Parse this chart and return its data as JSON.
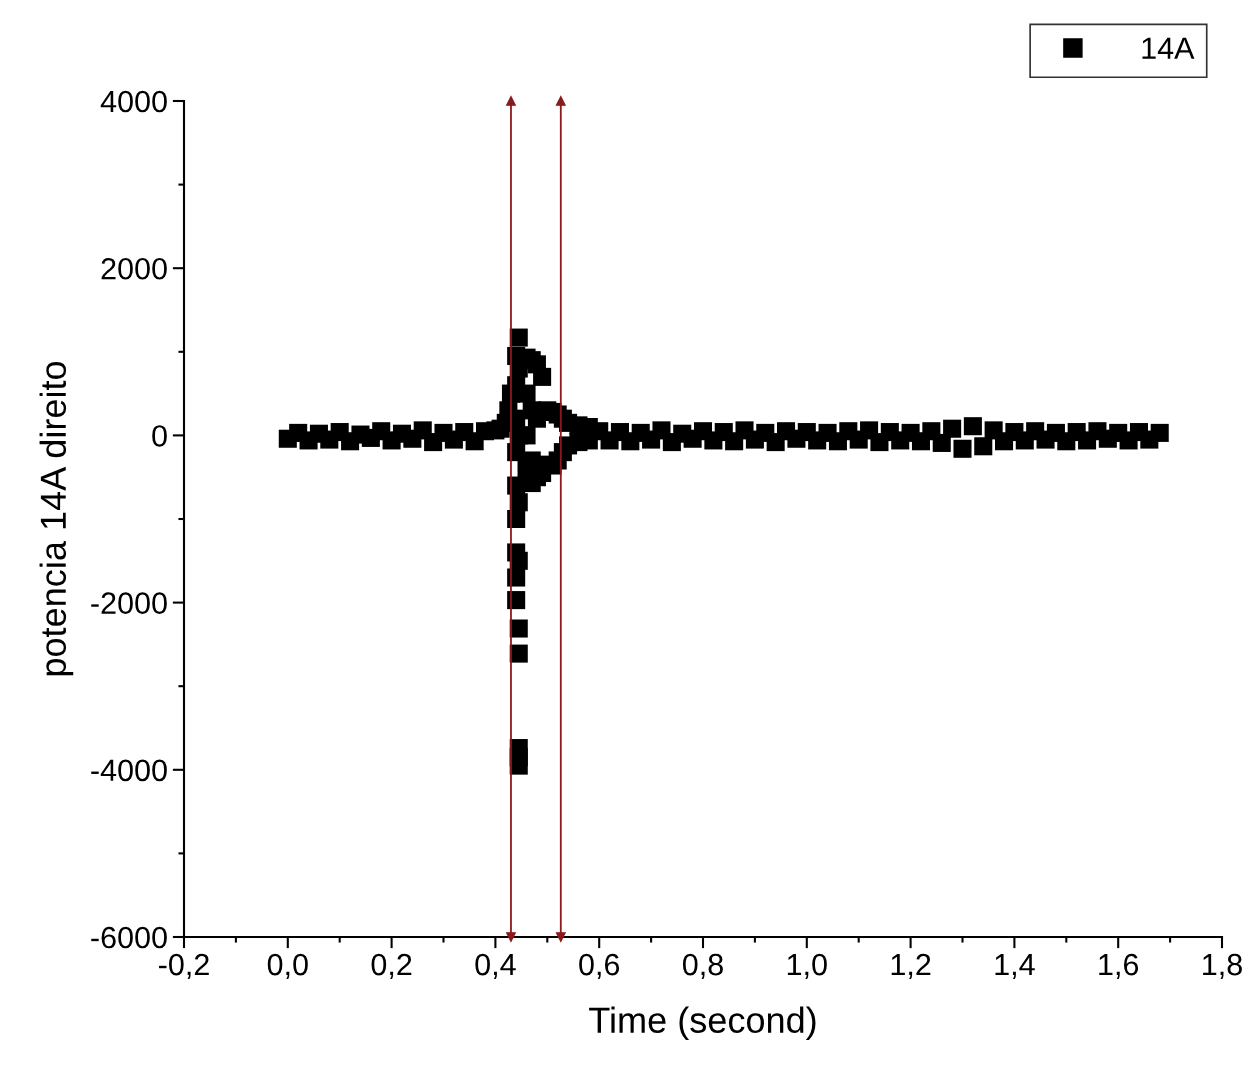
{
  "chart_data": {
    "type": "scatter",
    "xlabel": "Time (second)",
    "ylabel": "potencia 14A direito",
    "xlim": [
      -0.2,
      1.8
    ],
    "ylim": [
      -6000,
      4000
    ],
    "xticks": [
      {
        "value": -0.2,
        "label": "-0,2"
      },
      {
        "value": 0.0,
        "label": "0,0"
      },
      {
        "value": 0.2,
        "label": "0,2"
      },
      {
        "value": 0.4,
        "label": "0,4"
      },
      {
        "value": 0.6,
        "label": "0,6"
      },
      {
        "value": 0.8,
        "label": "0,8"
      },
      {
        "value": 1.0,
        "label": "1,0"
      },
      {
        "value": 1.2,
        "label": "1,2"
      },
      {
        "value": 1.4,
        "label": "1,4"
      },
      {
        "value": 1.6,
        "label": "1,6"
      },
      {
        "value": 1.8,
        "label": "1,8"
      }
    ],
    "yticks": [
      -6000,
      -4000,
      -2000,
      0,
      2000,
      4000
    ],
    "grid": false,
    "legend": "top right",
    "marker": "square",
    "ref_lines": [
      {
        "axis": "x",
        "value": 0.43,
        "label": null,
        "color": "#8b1a1a"
      },
      {
        "axis": "x",
        "value": 0.526,
        "label": null,
        "color": "#8b1a1a"
      }
    ],
    "series": [
      {
        "name": "14A",
        "color": "#000000",
        "x": [
          0.0,
          0.02,
          0.04,
          0.06,
          0.08,
          0.1,
          0.12,
          0.14,
          0.16,
          0.18,
          0.2,
          0.22,
          0.24,
          0.26,
          0.28,
          0.3,
          0.32,
          0.34,
          0.36,
          0.38,
          0.4,
          0.41,
          0.42,
          0.425,
          0.43,
          0.44,
          0.44,
          0.44,
          0.44,
          0.44,
          0.44,
          0.44,
          0.44,
          0.44,
          0.445,
          0.445,
          0.445,
          0.445,
          0.445,
          0.445,
          0.445,
          0.445,
          0.445,
          0.445,
          0.46,
          0.46,
          0.46,
          0.46,
          0.47,
          0.47,
          0.47,
          0.47,
          0.48,
          0.48,
          0.48,
          0.49,
          0.49,
          0.5,
          0.5,
          0.51,
          0.51,
          0.52,
          0.52,
          0.53,
          0.53,
          0.54,
          0.54,
          0.56,
          0.56,
          0.58,
          0.58,
          0.6,
          0.62,
          0.64,
          0.66,
          0.68,
          0.7,
          0.72,
          0.74,
          0.76,
          0.78,
          0.8,
          0.82,
          0.84,
          0.86,
          0.88,
          0.9,
          0.92,
          0.94,
          0.96,
          0.98,
          1.0,
          1.02,
          1.04,
          1.06,
          1.08,
          1.1,
          1.12,
          1.14,
          1.16,
          1.18,
          1.2,
          1.22,
          1.24,
          1.26,
          1.28,
          1.3,
          1.32,
          1.34,
          1.36,
          1.38,
          1.4,
          1.42,
          1.44,
          1.46,
          1.48,
          1.5,
          1.52,
          1.54,
          1.56,
          1.58,
          1.6,
          1.62,
          1.64,
          1.66,
          1.68
        ],
        "values": [
          -40,
          30,
          -60,
          20,
          -50,
          40,
          -70,
          10,
          -30,
          50,
          -60,
          20,
          -40,
          60,
          -80,
          30,
          -50,
          40,
          -70,
          50,
          60,
          80,
          150,
          300,
          500,
          950,
          600,
          200,
          -200,
          -600,
          -1000,
          -1400,
          -1700,
          -1970,
          1170,
          800,
          0,
          -800,
          -1500,
          -2310,
          -2610,
          -3740,
          -3950,
          -3850,
          930,
          500,
          0,
          -400,
          900,
          300,
          -300,
          -570,
          850,
          200,
          -500,
          700,
          -450,
          300,
          -350,
          280,
          -360,
          250,
          -300,
          200,
          -200,
          150,
          -120,
          120,
          -80,
          100,
          -60,
          50,
          -60,
          40,
          -70,
          30,
          -50,
          60,
          -80,
          20,
          -40,
          50,
          -60,
          40,
          -70,
          60,
          -50,
          30,
          -80,
          50,
          -40,
          40,
          -60,
          30,
          -70,
          50,
          -50,
          60,
          -80,
          40,
          -60,
          30,
          -70,
          50,
          -90,
          80,
          -160,
          110,
          -130,
          60,
          -70,
          40,
          -60,
          50,
          -50,
          30,
          -70,
          40,
          -60,
          50,
          -40,
          30,
          -60,
          40,
          -50,
          30
        ]
      }
    ]
  }
}
